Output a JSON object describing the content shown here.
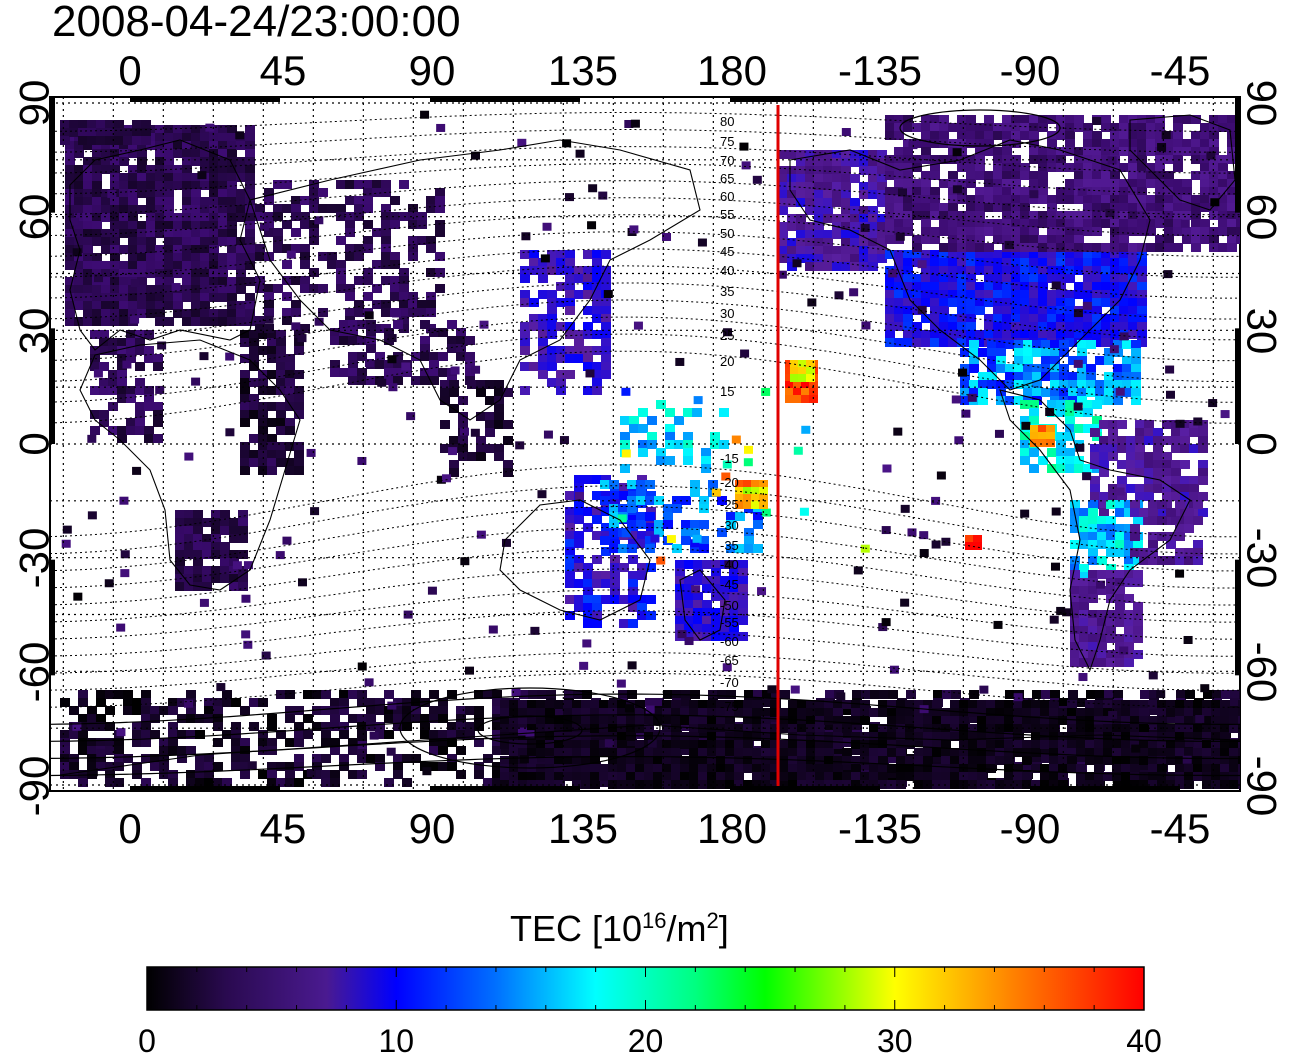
{
  "title": "2008-04-24/23:00:00",
  "map": {
    "x_ticks": [
      "0",
      "45",
      "90",
      "135",
      "180",
      "-135",
      "-90",
      "-45"
    ],
    "y_ticks": [
      "90",
      "60",
      "30",
      "0",
      "-30",
      "-60",
      "-90"
    ],
    "contour_labels": [
      "80",
      "75",
      "70",
      "65",
      "60",
      "55",
      "50",
      "45",
      "40",
      "35",
      "30",
      "25",
      "20",
      "15",
      "-15",
      "-20",
      "-25",
      "-30",
      "-35",
      "-40",
      "-45",
      "-50",
      "-55",
      "-60",
      "-65",
      "-70",
      "-75"
    ],
    "terminator_longitude": -165,
    "terminator_color": "#e00000"
  },
  "colorbar": {
    "title_prefix": "TEC  [10",
    "title_sup1": "16",
    "title_mid": "/m",
    "title_sup2": "2",
    "title_suffix": "]",
    "tick_labels": [
      "0",
      "10",
      "20",
      "30",
      "40"
    ],
    "range": [
      0,
      40
    ],
    "colors": [
      "#000000",
      "#3a0a6e",
      "#5a1fa0",
      "#0000ff",
      "#0080ff",
      "#00ffff",
      "#00ff80",
      "#00ff00",
      "#ffff00",
      "#ff8000",
      "#ff0000"
    ]
  }
}
